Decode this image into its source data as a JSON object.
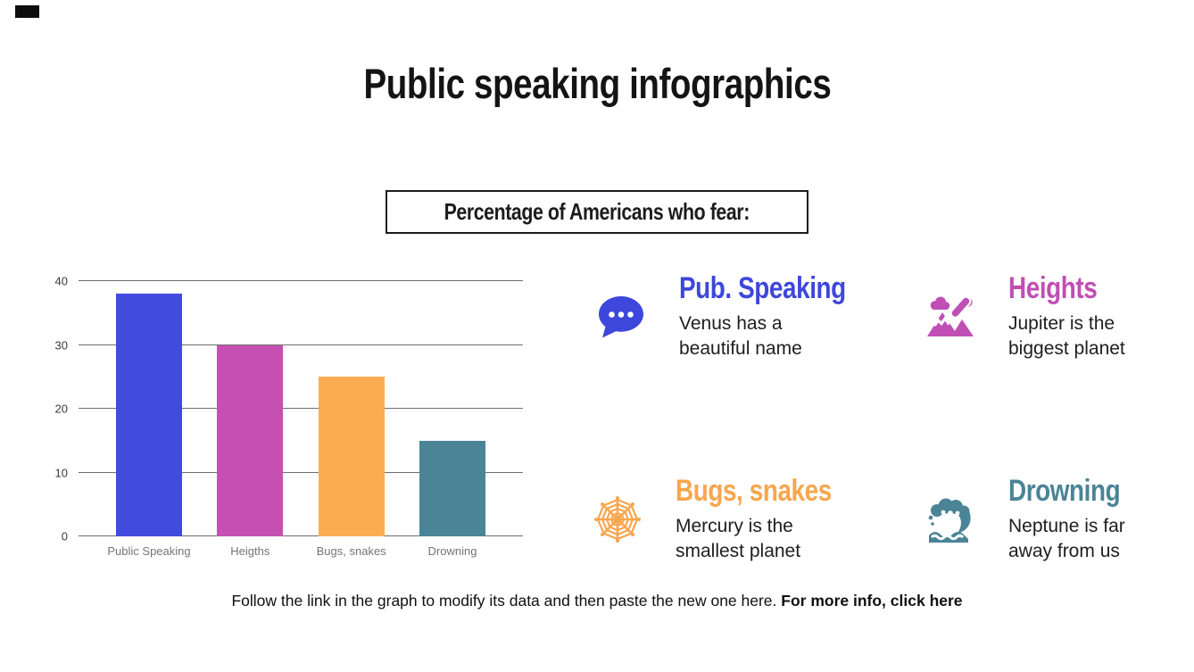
{
  "slide": {
    "title": "Public speaking infographics",
    "subtitle": "Percentage of Americans who fear:"
  },
  "chart_data": {
    "type": "bar",
    "title": "",
    "categories": [
      "Public Speaking",
      "Heigths",
      "Bugs, snakes",
      "Drowning"
    ],
    "values": [
      38,
      30,
      25,
      15
    ],
    "bar_colors": [
      "#414bdd",
      "#c450b2",
      "#fbac51",
      "#4a8496"
    ],
    "xlabel": "",
    "ylabel": "",
    "ylim": [
      0,
      40
    ],
    "yticks": [
      0,
      10,
      20,
      30,
      40
    ],
    "grid": true,
    "legend": false,
    "gridline_color": "#6e6e6e",
    "tick_label_color": "#3a3a3a",
    "category_label_color": "#757575"
  },
  "features": [
    {
      "title": "Pub. Speaking",
      "description": "Venus has a beautiful name",
      "color": "#3d47db",
      "icon": "speech-bubble"
    },
    {
      "title": "Heights",
      "description": "Jupiter is the biggest planet",
      "color": "#c04fb4",
      "icon": "mountains"
    },
    {
      "title": "Bugs, snakes",
      "description": "Mercury is the smallest planet",
      "color": "#f8a64e",
      "icon": "spider-web"
    },
    {
      "title": "Drowning",
      "description": "Neptune is far away from us",
      "color": "#4a8496",
      "icon": "wave"
    }
  ],
  "footer": {
    "text": "Follow the link in the graph to modify its data and then paste the new one here. ",
    "link_text": "For more info, click here"
  }
}
